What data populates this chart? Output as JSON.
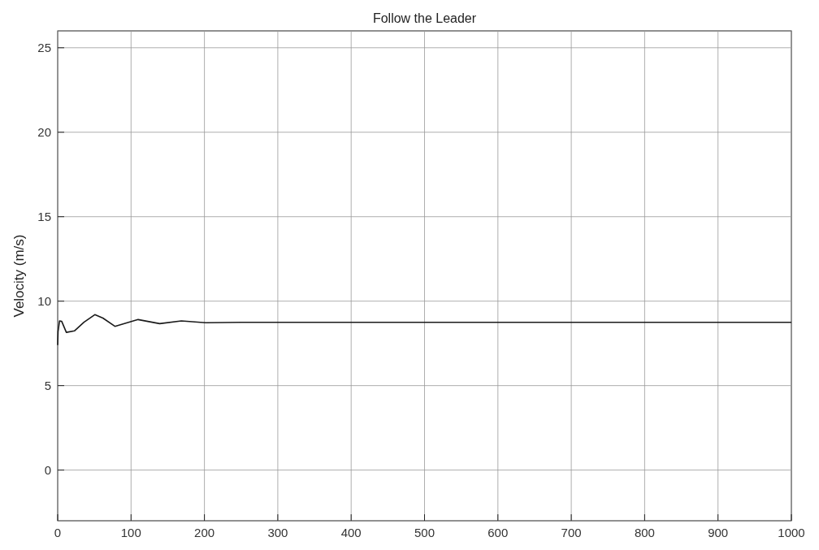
{
  "chart_data": {
    "type": "line",
    "title": "Follow the Leader",
    "ylabel": "Velocity (m/s)",
    "x": [
      0,
      0.5,
      2.5,
      5.5,
      11.8,
      22.8,
      35.8,
      50.6,
      61.6,
      78,
      91,
      109.6,
      139,
      168.6,
      201.8,
      250,
      300,
      400,
      500,
      600,
      700,
      800,
      900,
      1000
    ],
    "series": [
      {
        "color": "#1a1a1a",
        "values": [
          7.4,
          8.2,
          8.83,
          8.8,
          8.15,
          8.24,
          8.75,
          9.2,
          9.0,
          8.51,
          8.67,
          8.91,
          8.67,
          8.83,
          8.72,
          8.75,
          8.75,
          8.75,
          8.75,
          8.75,
          8.75,
          8.75,
          8.75,
          8.75
        ]
      }
    ],
    "xlim": [
      0,
      1000
    ],
    "xticks": [
      0,
      100,
      200,
      300,
      400,
      500,
      600,
      700,
      800,
      900,
      1000
    ],
    "ylim": [
      -3,
      26
    ],
    "yticks": [
      0,
      5,
      10,
      15,
      20,
      25
    ],
    "grid": true,
    "line_style": "solid",
    "marker": "none"
  }
}
